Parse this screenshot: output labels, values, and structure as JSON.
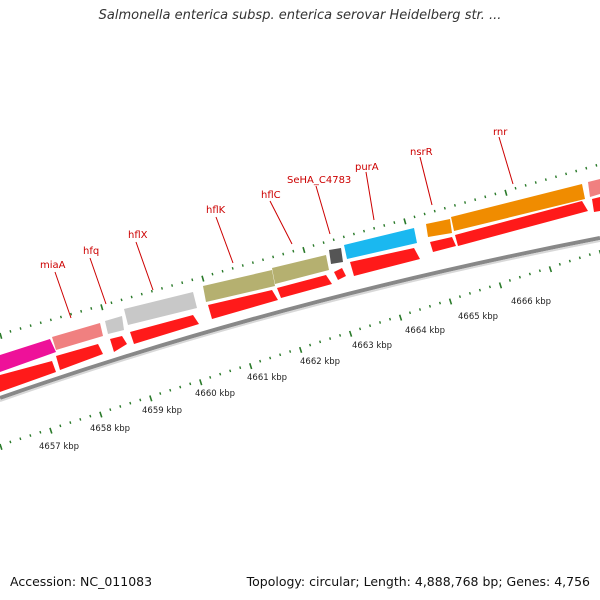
{
  "title": "Salmonella enterica subsp. enterica serovar Heidelberg str. ...",
  "footer": {
    "accession": "Accession: NC_011083",
    "summary": "Topology: circular; Length: 4,888,768 bp; Genes: 4,756"
  },
  "colors": {
    "label": "#cc0000",
    "tick": "#2a7a2a",
    "backbone": "#888888",
    "cds": "#ff1a1a"
  },
  "genes": [
    {
      "name": "miaA",
      "color": "#f08080"
    },
    {
      "name": "hfq",
      "color": "#c8c8c8"
    },
    {
      "name": "hflX",
      "color": "#c8c8c8"
    },
    {
      "name": "hflK",
      "color": "#b5b070"
    },
    {
      "name": "hflC",
      "color": "#b5b070"
    },
    {
      "name": "SeHA_C4783",
      "color": "#555555"
    },
    {
      "name": "purA",
      "color": "#1ab8f0"
    },
    {
      "name": "nsrR",
      "color": "#f08c00"
    },
    {
      "name": "rnr",
      "color": "#f08c00"
    }
  ],
  "scale_labels": [
    "4657 kbp",
    "4658 kbp",
    "4659 kbp",
    "4660 kbp",
    "4661 kbp",
    "4662 kbp",
    "4663 kbp",
    "4664 kbp",
    "4665 kbp",
    "4666 kbp"
  ]
}
